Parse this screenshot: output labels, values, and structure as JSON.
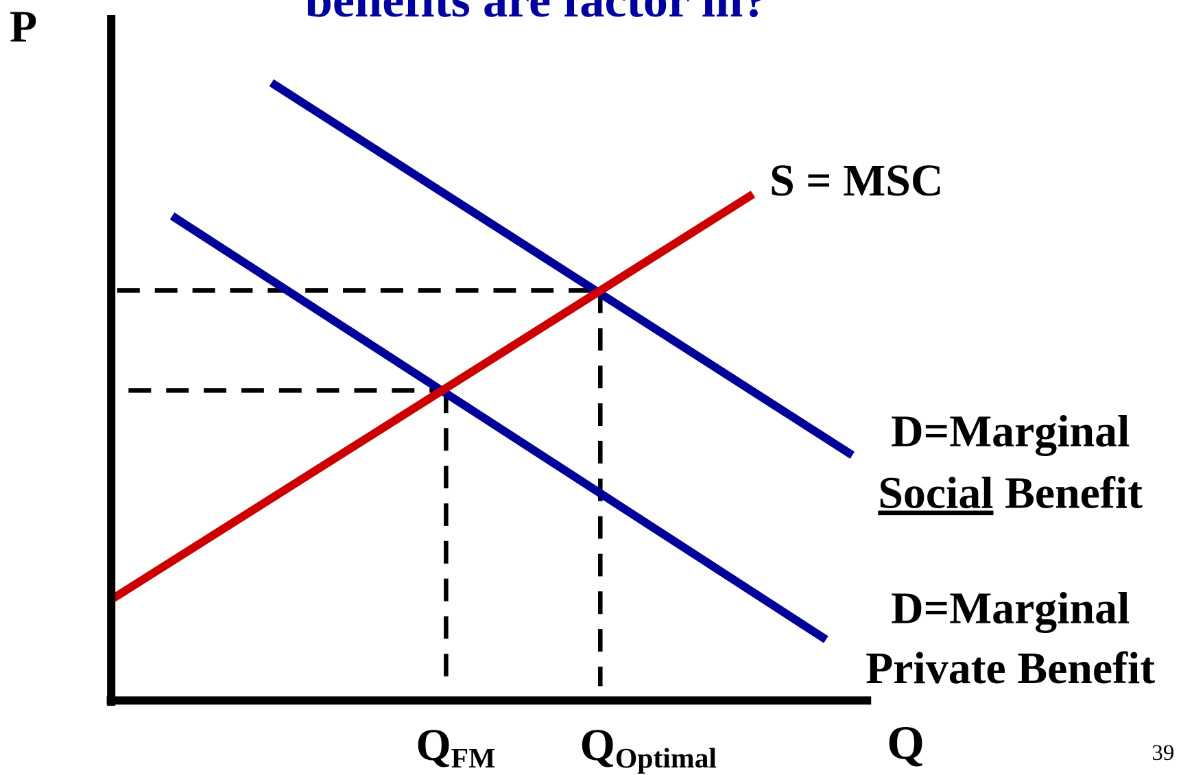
{
  "title": "benefits are factor in?",
  "axes": {
    "y_label": "P",
    "x_label": "Q"
  },
  "curves": {
    "supply": {
      "label": "S = MSC"
    },
    "social_demand": {
      "line1": "D=Marginal",
      "line2_underlined": "Social",
      "line2_rest": "Benefit"
    },
    "private_demand": {
      "line1": "D=Marginal",
      "line2": "Private Benefit"
    }
  },
  "quantities": {
    "free_market": {
      "main": "Q",
      "sub": "FM"
    },
    "optimal": {
      "main": "Q",
      "sub": "Optimal"
    }
  },
  "page_number": "39"
}
